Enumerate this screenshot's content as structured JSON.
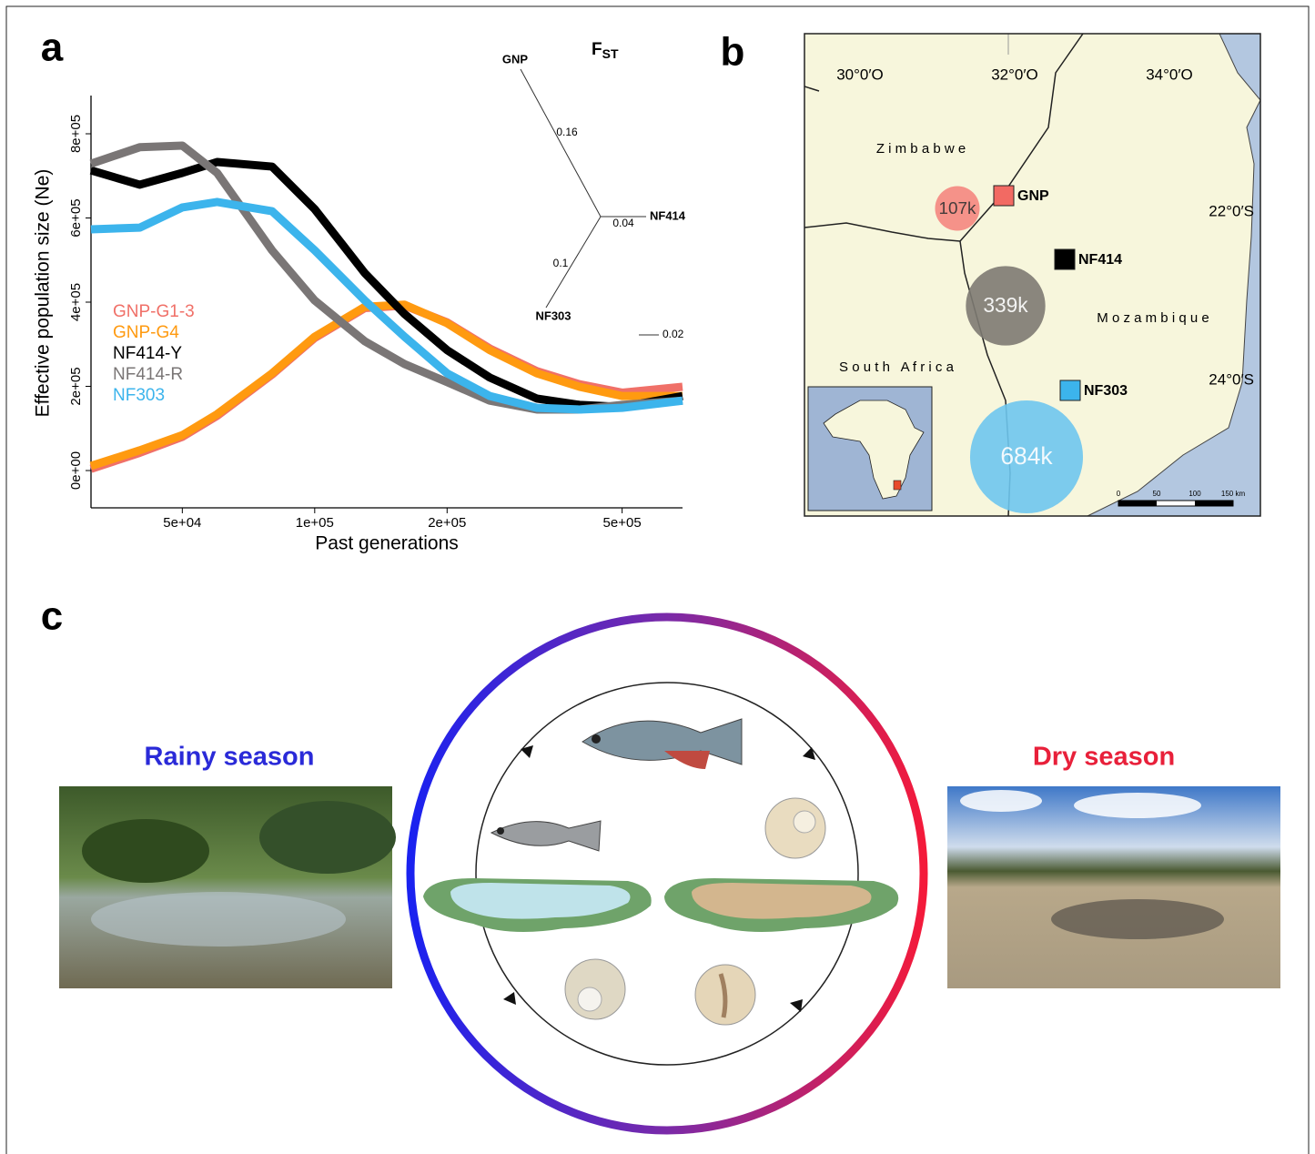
{
  "panel_labels": [
    "a",
    "b",
    "c"
  ],
  "chart_data": {
    "type": "line",
    "x_label": "Past generations",
    "y_label": "Effective population size (Ne)",
    "log_x": true,
    "x": [
      31000,
      40000,
      50000,
      60000,
      80000,
      100000,
      130000,
      160000,
      200000,
      250000,
      320000,
      400000,
      500000,
      686000
    ],
    "xlim": [
      31000,
      686000
    ],
    "xticks": [
      {
        "value": 50000,
        "label": "5e+04"
      },
      {
        "value": 100000,
        "label": "1e+05"
      },
      {
        "value": 200000,
        "label": "2e+05"
      },
      {
        "value": 500000,
        "label": "5e+05"
      }
    ],
    "ylim": [
      -88600,
      890800
    ],
    "yticks": [
      {
        "value": 0,
        "label": "0e+00"
      },
      {
        "value": 200000,
        "label": "2e+05"
      },
      {
        "value": 400000,
        "label": "4e+05"
      },
      {
        "value": 600000,
        "label": "6e+05"
      },
      {
        "value": 800000,
        "label": "8e+05"
      }
    ],
    "series": [
      {
        "name": "GNP-G1-3",
        "color": "#f07068",
        "values": [
          4000,
          42000,
          80000,
          130000,
          228000,
          315000,
          386000,
          392000,
          352000,
          290000,
          236000,
          205000,
          185000,
          199000
        ]
      },
      {
        "name": "GNP-G4",
        "color": "#ff9a10",
        "values": [
          11000,
          48000,
          84000,
          134000,
          231000,
          318000,
          389000,
          394000,
          350000,
          286000,
          231000,
          199000,
          177000,
          177000
        ]
      },
      {
        "name": "NF414-Y",
        "color": "#000000",
        "values": [
          713000,
          679000,
          707000,
          733000,
          722000,
          621000,
          469000,
          372000,
          286000,
          221000,
          171000,
          156000,
          151000,
          177000
        ]
      },
      {
        "name": "NF414-R",
        "color": "#7a7676",
        "values": [
          729000,
          768000,
          772000,
          707000,
          523000,
          404000,
          307000,
          253000,
          210000,
          166000,
          145000,
          145000,
          156000,
          166000
        ]
      },
      {
        "name": "NF303",
        "color": "#3cb4ec",
        "values": [
          573000,
          577000,
          625000,
          638000,
          616000,
          523000,
          404000,
          318000,
          231000,
          177000,
          149000,
          145000,
          149000,
          166000
        ]
      }
    ]
  },
  "fst_tree": {
    "symbol": "F",
    "subscript": "ST",
    "leaves": [
      "GNP",
      "NF414",
      "NF303"
    ],
    "branch_labels": [
      "0.16",
      "0.04",
      "0.1"
    ],
    "scale_label": "0.02"
  },
  "map": {
    "lon_labels": [
      "30°0′O",
      "32°0′O",
      "34°0′O"
    ],
    "lat_labels": [
      "22°0′S",
      "24°0′S"
    ],
    "countries": [
      "Z i m b a b w e",
      "M o z a m b i q u e",
      "S o u t h   A f r i c a"
    ],
    "sites": [
      {
        "name": "GNP",
        "color": "#f26a63"
      },
      {
        "name": "NF414",
        "color": "#000000"
      },
      {
        "name": "NF303",
        "color": "#3cb4ec"
      }
    ],
    "bubbles": [
      {
        "value": 107000,
        "label": "107k",
        "color": "#f4877f"
      },
      {
        "value": 339000,
        "label": "339k",
        "color": "#7d7a72"
      },
      {
        "value": 684000,
        "label": "684k",
        "color": "#6ec6ee"
      }
    ],
    "scale_labels": [
      "0",
      "50",
      "100",
      "150 km"
    ]
  },
  "seasons": {
    "rainy": "Rainy season",
    "dry": "Dry season"
  }
}
